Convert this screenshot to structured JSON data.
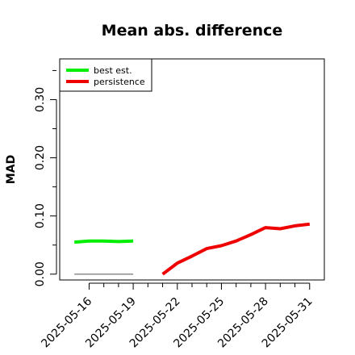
{
  "chart_data": {
    "type": "line",
    "title": "Mean abs. difference",
    "xlabel": "",
    "ylabel": "MAD",
    "x_ticks": [
      "2025-05-16",
      "2025-05-19",
      "2025-05-22",
      "2025-05-25",
      "2025-05-28",
      "2025-05-31"
    ],
    "y_ticks": [
      "0.00",
      "0.10",
      "0.20",
      "0.30"
    ],
    "xlim": [
      "2025-05-14",
      "2025-06-01"
    ],
    "ylim": [
      -0.01,
      0.37
    ],
    "grid": false,
    "legend_position": "top-left",
    "legend": [
      {
        "label": "best est.",
        "color": "#00ee00"
      },
      {
        "label": "persistence",
        "color": "#ee0000"
      }
    ],
    "series": [
      {
        "name": "best est.",
        "color": "#00ee00",
        "points": [
          {
            "x": "2025-05-15",
            "y": 0.055
          },
          {
            "x": "2025-05-16",
            "y": 0.057
          },
          {
            "x": "2025-05-17",
            "y": 0.057
          },
          {
            "x": "2025-05-18",
            "y": 0.056
          },
          {
            "x": "2025-05-19",
            "y": 0.057
          }
        ]
      },
      {
        "name": "persistence",
        "color": "#ee0000",
        "points": [
          {
            "x": "2025-05-21",
            "y": 0.0
          },
          {
            "x": "2025-05-22",
            "y": 0.019
          },
          {
            "x": "2025-05-23",
            "y": 0.031
          },
          {
            "x": "2025-05-24",
            "y": 0.044
          },
          {
            "x": "2025-05-25",
            "y": 0.049
          },
          {
            "x": "2025-05-26",
            "y": 0.057
          },
          {
            "x": "2025-05-27",
            "y": 0.068
          },
          {
            "x": "2025-05-28",
            "y": 0.08
          },
          {
            "x": "2025-05-29",
            "y": 0.078
          },
          {
            "x": "2025-05-30",
            "y": 0.083
          },
          {
            "x": "2025-05-31",
            "y": 0.086
          }
        ]
      },
      {
        "color": "#808080",
        "points": [
          {
            "x": "2025-05-15",
            "y": 0.0
          },
          {
            "x": "2025-05-19",
            "y": 0.0
          }
        ]
      }
    ]
  }
}
